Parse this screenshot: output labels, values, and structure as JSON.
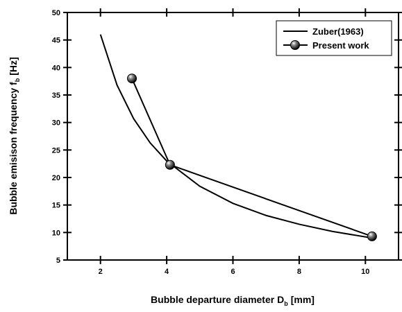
{
  "chart_data": {
    "type": "line",
    "x_label": [
      "Bubble departure diameter D",
      "b",
      "[mm]"
    ],
    "y_label": [
      "Bubble emisison frequency f",
      "b",
      "[Hz]"
    ],
    "xlim": [
      1,
      11
    ],
    "xticks": [
      2,
      4,
      6,
      8,
      10
    ],
    "ylim": [
      5,
      50
    ],
    "yticks": [
      5,
      10,
      15,
      20,
      25,
      30,
      35,
      40,
      45,
      50
    ],
    "legend": "top-right",
    "series": [
      {
        "name": "Zuber(1963)",
        "color": "#000000",
        "marker": false,
        "x": [
          2,
          2.5,
          3,
          3.5,
          4,
          5,
          6,
          7,
          8,
          9,
          10.2
        ],
        "values": [
          46,
          36.8,
          30.7,
          26.3,
          23,
          18.4,
          15.3,
          13.1,
          11.5,
          10.2,
          9
        ]
      },
      {
        "name": "Present work",
        "color": "#000000",
        "marker": true,
        "x": [
          2.95,
          4.1,
          10.2
        ],
        "values": [
          38,
          22.3,
          9.3
        ]
      }
    ]
  }
}
